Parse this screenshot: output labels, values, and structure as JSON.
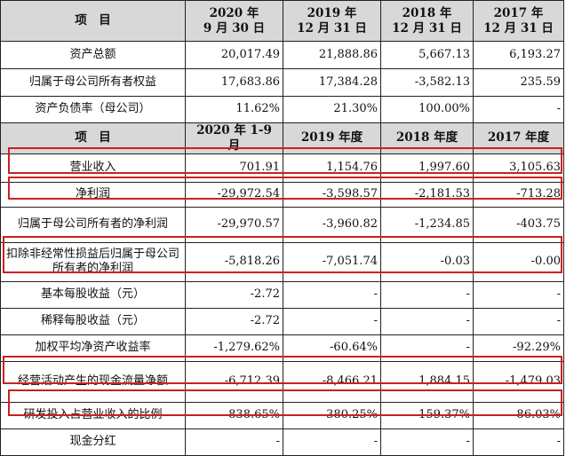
{
  "header1": {
    "item": "项　目",
    "periods": [
      "2020 年\n9 月 30 日",
      "2019 年\n12 月 31 日",
      "2018 年\n12 月 31 日",
      "2017 年\n12 月 31 日"
    ]
  },
  "balance_rows": [
    {
      "label": "资产总额",
      "values": [
        "20,017.49",
        "21,888.86",
        "5,667.13",
        "6,193.27"
      ]
    },
    {
      "label": "归属于母公司所有者权益",
      "values": [
        "17,683.86",
        "17,384.28",
        "-3,582.13",
        "235.59"
      ]
    },
    {
      "label": "资产负债率（母公司）",
      "values": [
        "11.62%",
        "21.30%",
        "100.00%",
        "-"
      ]
    }
  ],
  "header2": {
    "item": "项　目",
    "periods": [
      "2020 年 1-9 月",
      "2019 年度",
      "2018 年度",
      "2017 年度"
    ]
  },
  "income_rows": [
    {
      "label": "营业收入",
      "values": [
        "701.91",
        "1,154.76",
        "1,997.60",
        "3,105.63"
      ]
    },
    {
      "label": "净利润",
      "values": [
        "-29,972.54",
        "-3,598.57",
        "-2,181.53",
        "-713.28"
      ]
    },
    {
      "label": "归属于母公司所有者的净利润",
      "values": [
        "-29,970.57",
        "-3,960.82",
        "-1,234.85",
        "-403.75"
      ]
    },
    {
      "label": "扣除非经常性损益后归属于母公司所有者的净利润",
      "values": [
        "-5,818.26",
        "-7,051.74",
        "-0.03",
        "-0.00"
      ]
    },
    {
      "label": "基本每股收益（元）",
      "values": [
        "-2.72",
        "-",
        "-",
        "-"
      ]
    },
    {
      "label": "稀释每股收益（元）",
      "values": [
        "-2.72",
        "-",
        "-",
        "-"
      ]
    },
    {
      "label": "加权平均净资产收益率",
      "values": [
        "-1,279.62%",
        "-60.64%",
        "-",
        "-92.29%"
      ]
    },
    {
      "label": "经营活动产生的现金流量净额",
      "values": [
        "-6,712.39",
        "-8,466.21",
        "1,884.15",
        "-1,479.03"
      ]
    },
    {
      "label": "研发投入占营业收入的比例",
      "values": [
        "838.65%",
        "380.25%",
        "159.37%",
        "86.03%"
      ]
    },
    {
      "label": "现金分红",
      "values": [
        "-",
        "-",
        "-",
        "-"
      ]
    }
  ],
  "colors": {
    "highlight_box": "#cc2020",
    "header_bg": "#d8d8d8",
    "grid": "#222222"
  }
}
